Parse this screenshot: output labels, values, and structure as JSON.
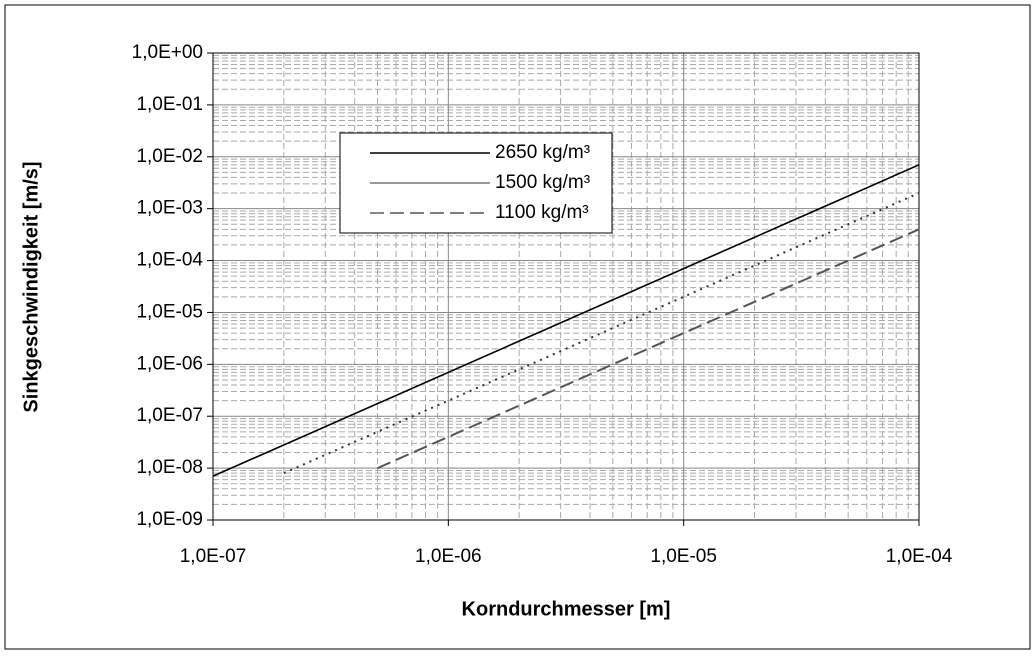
{
  "chart_data": {
    "type": "line",
    "xlabel": "Korndurchmesser [m]",
    "ylabel": "Sinkgeschwindigkeit [m/s]",
    "xscale": "log",
    "yscale": "log",
    "grid": true,
    "legend": "top-center",
    "xlim": [
      1e-07,
      0.0001
    ],
    "ylim": [
      1e-09,
      1
    ],
    "xticks": [
      {
        "value": 1e-07,
        "label": "1,0E-07"
      },
      {
        "value": 1e-06,
        "label": "1,0E-06"
      },
      {
        "value": 1e-05,
        "label": "1,0E-05"
      },
      {
        "value": 0.0001,
        "label": "1,0E-04"
      }
    ],
    "yticks": [
      {
        "value": 1e-09,
        "label": "1,0E-09"
      },
      {
        "value": 1e-08,
        "label": "1,0E-08"
      },
      {
        "value": 1e-07,
        "label": "1,0E-07"
      },
      {
        "value": 1e-06,
        "label": "1,0E-06"
      },
      {
        "value": 1e-05,
        "label": "1,0E-05"
      },
      {
        "value": 0.0001,
        "label": "1,0E-04"
      },
      {
        "value": 0.001,
        "label": "1,0E-03"
      },
      {
        "value": 0.01,
        "label": "1,0E-02"
      },
      {
        "value": 0.1,
        "label": "1,0E-01"
      },
      {
        "value": 1,
        "label": "1,0E+00"
      }
    ],
    "series": [
      {
        "name": "2650 kg/m³",
        "color": "#000000",
        "style": "solid",
        "x": [
          1e-07,
          0.0001
        ],
        "values": [
          7e-09,
          0.007
        ]
      },
      {
        "name": "1500 kg/m³",
        "color": "#333333",
        "style": "dotted",
        "x": [
          2e-07,
          0.0001
        ],
        "values": [
          8e-09,
          0.002
        ]
      },
      {
        "name": "1100 kg/m³",
        "color": "#555555",
        "style": "dashed",
        "x": [
          5e-07,
          0.0001
        ],
        "values": [
          1e-08,
          0.0004
        ]
      }
    ]
  }
}
